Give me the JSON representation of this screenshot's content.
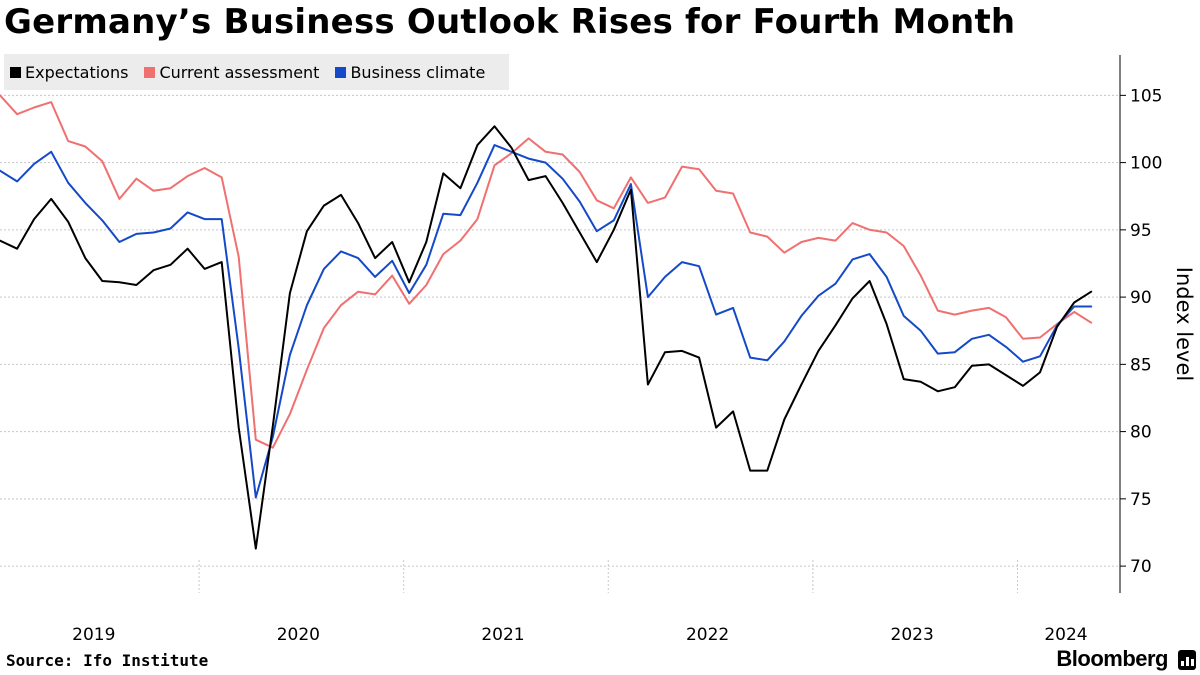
{
  "title": "Germany’s Business Outlook Rises for Fourth Month",
  "legend": {
    "expectations": "Expectations",
    "current": "Current assessment",
    "climate": "Business climate"
  },
  "colors": {
    "expectations": "#000000",
    "current": "#f07070",
    "climate": "#1449c8",
    "grid": "#c8c8c8",
    "legend_bg": "#ececec"
  },
  "source": "Source: Ifo Institute",
  "brand": "Bloomberg",
  "chart_data": {
    "type": "line",
    "ylabel": "Index level",
    "ylim": [
      68,
      108
    ],
    "yticks": [
      70,
      75,
      80,
      85,
      90,
      95,
      100,
      105
    ],
    "x_start": "2019-01",
    "x_end": "2024-03",
    "year_labels": [
      "2019",
      "2020",
      "2021",
      "2022",
      "2023",
      "2024"
    ],
    "series": [
      {
        "name": "Expectations",
        "color_key": "expectations",
        "values": [
          94.2,
          93.6,
          95.8,
          97.3,
          95.6,
          92.9,
          91.2,
          91.1,
          90.9,
          92.0,
          92.4,
          93.6,
          92.1,
          92.6,
          80.3,
          71.3,
          80.4,
          90.3,
          94.9,
          96.8,
          97.6,
          95.5,
          92.9,
          94.1,
          91.1,
          94.1,
          99.2,
          98.1,
          101.3,
          102.7,
          101.1,
          98.7,
          99.0,
          97.0,
          94.8,
          92.6,
          95.0,
          98.0,
          83.5,
          85.9,
          86.0,
          85.5,
          80.3,
          81.5,
          77.1,
          77.1,
          80.9,
          83.5,
          86.0,
          87.9,
          89.9,
          91.2,
          88.0,
          83.9,
          83.7,
          83.0,
          83.3,
          84.9,
          85.0,
          84.2,
          83.4,
          84.4,
          87.8,
          89.6,
          90.4
        ],
        "months": [
          0,
          1,
          2,
          3,
          4,
          5,
          6,
          7,
          8,
          9,
          10,
          11,
          12,
          13,
          14,
          15,
          16,
          17,
          18,
          19,
          20,
          21,
          22,
          23,
          24,
          25,
          26,
          27,
          28,
          29,
          30,
          31,
          32,
          33,
          34,
          35,
          36,
          37,
          38,
          39,
          40,
          41,
          42,
          43,
          44,
          45,
          46,
          47,
          48,
          49,
          50,
          51,
          52,
          53,
          54,
          55,
          56,
          57,
          58,
          59,
          60,
          61,
          62,
          63,
          64
        ]
      },
      {
        "name": "Current assessment",
        "color_key": "current",
        "values": [
          105.0,
          103.6,
          104.1,
          104.5,
          101.6,
          101.2,
          100.1,
          97.3,
          98.8,
          97.9,
          98.1,
          99.0,
          99.6,
          98.9,
          93.0,
          79.4,
          78.8,
          81.3,
          84.6,
          87.7,
          89.4,
          90.4,
          90.2,
          91.6,
          89.5,
          90.9,
          93.2,
          94.2,
          95.8,
          99.8,
          100.7,
          101.8,
          100.8,
          100.6,
          99.3,
          97.2,
          96.6,
          98.9,
          97.0,
          97.4,
          99.7,
          99.5,
          97.9,
          97.7,
          94.8,
          94.5,
          93.3,
          94.1,
          94.4,
          94.2,
          95.5,
          95.0,
          94.8,
          93.8,
          91.6,
          89.0,
          88.7,
          89.0,
          89.2,
          88.5,
          86.9,
          87.0,
          88.0,
          88.9,
          88.1
        ],
        "months": [
          0,
          1,
          2,
          3,
          4,
          5,
          6,
          7,
          8,
          9,
          10,
          11,
          12,
          13,
          14,
          15,
          16,
          17,
          18,
          19,
          20,
          21,
          22,
          23,
          24,
          25,
          26,
          27,
          28,
          29,
          30,
          31,
          32,
          33,
          34,
          35,
          36,
          37,
          38,
          39,
          40,
          41,
          42,
          43,
          44,
          45,
          46,
          47,
          48,
          49,
          50,
          51,
          52,
          53,
          54,
          55,
          56,
          57,
          58,
          59,
          60,
          61,
          62,
          63,
          64
        ]
      },
      {
        "name": "Business climate",
        "color_key": "climate",
        "values": [
          99.4,
          98.6,
          99.9,
          100.8,
          98.5,
          97.0,
          95.7,
          94.1,
          94.7,
          94.8,
          95.1,
          96.3,
          95.8,
          95.8,
          86.2,
          75.1,
          79.6,
          85.7,
          89.4,
          92.1,
          93.4,
          92.9,
          91.5,
          92.7,
          90.3,
          92.4,
          96.2,
          96.1,
          98.5,
          101.3,
          100.8,
          100.3,
          100.0,
          98.8,
          97.1,
          94.9,
          95.7,
          98.4,
          90.0,
          91.5,
          92.6,
          92.3,
          88.7,
          89.2,
          85.5,
          85.3,
          86.7,
          88.6,
          90.1,
          91.0,
          92.8,
          93.2,
          91.5,
          88.6,
          87.5,
          85.8,
          85.9,
          86.9,
          87.2,
          86.3,
          85.2,
          85.6,
          87.9,
          89.3,
          89.3
        ],
        "months": [
          0,
          1,
          2,
          3,
          4,
          5,
          6,
          7,
          8,
          9,
          10,
          11,
          12,
          13,
          14,
          15,
          16,
          17,
          18,
          19,
          20,
          21,
          22,
          23,
          24,
          25,
          26,
          27,
          28,
          29,
          30,
          31,
          32,
          33,
          34,
          35,
          36,
          37,
          38,
          39,
          40,
          41,
          42,
          43,
          44,
          45,
          46,
          47,
          48,
          49,
          50,
          51,
          52,
          53,
          54,
          55,
          56,
          57,
          58,
          59,
          60,
          61,
          62,
          63,
          64
        ]
      }
    ]
  }
}
